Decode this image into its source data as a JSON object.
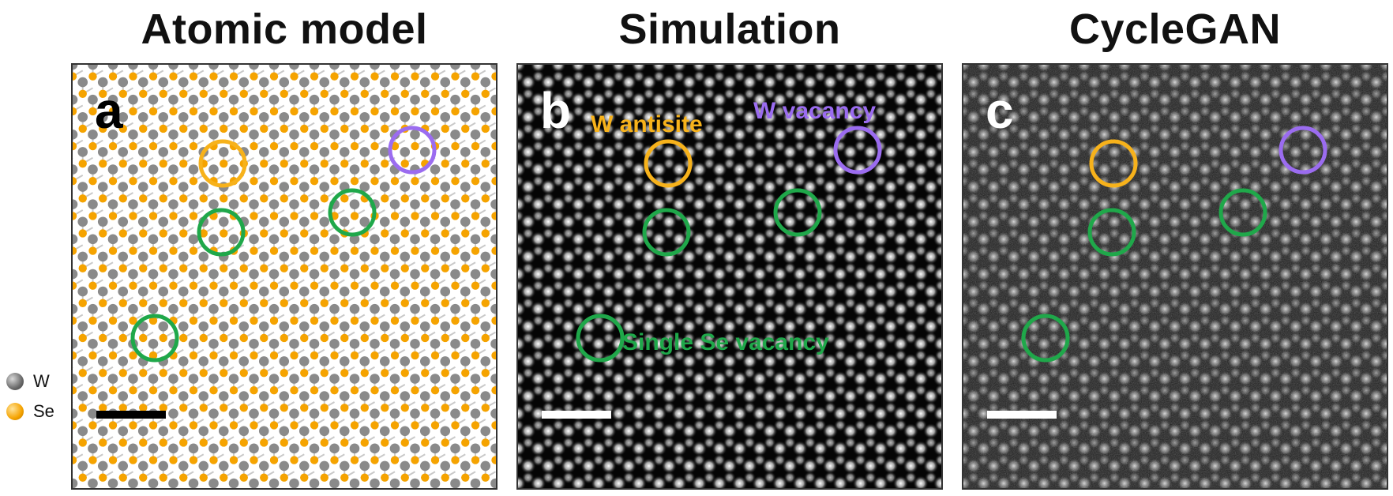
{
  "titles": {
    "atomic": "Atomic model",
    "simulation": "Simulation",
    "cyclegan": "CycleGAN"
  },
  "panel_letters": {
    "a": "a",
    "b": "b",
    "c": "c"
  },
  "annotations": {
    "w_antisite": "W antisite",
    "w_vacancy": "W vacancy",
    "single_se_vacancy": "Single Se vacancy"
  },
  "legend": {
    "w": "W",
    "se": "Se"
  },
  "colors": {
    "antisite": "#F7B21B",
    "vacancy_w": "#9B6CF0",
    "vacancy_se": "#1FA84A",
    "w_atom": "#7a7a7a",
    "se_atom": "#F5A300"
  }
}
